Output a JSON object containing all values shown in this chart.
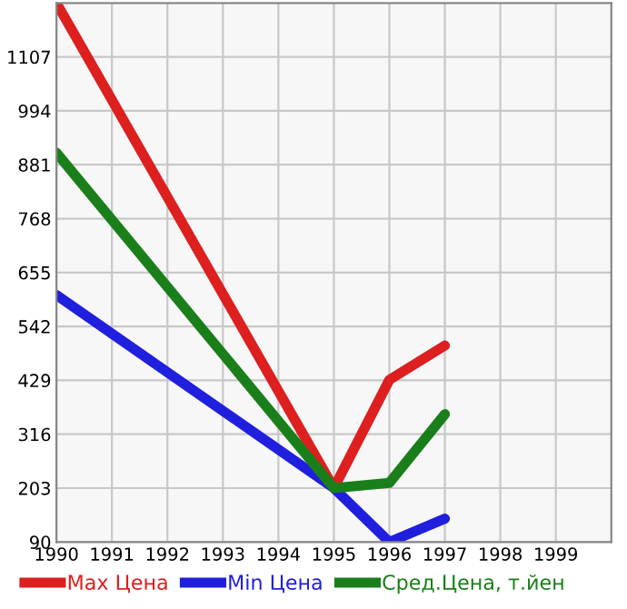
{
  "chart_data": {
    "type": "line",
    "x": [
      1990,
      1995,
      1996,
      1997
    ],
    "series": [
      {
        "name": "Max Цена",
        "color": "#dd1f1f",
        "values": [
          1220,
          203,
          430,
          502
        ]
      },
      {
        "name": "Min Цена",
        "color": "#1f1fdd",
        "values": [
          608,
          203,
          90,
          139
        ]
      },
      {
        "name": "Сред.Цена, т.йен",
        "color": "#1a7f1a",
        "values": [
          906,
          203,
          214,
          358
        ]
      }
    ],
    "xlim": [
      1990,
      2000
    ],
    "xticks": [
      1990,
      1991,
      1992,
      1993,
      1994,
      1995,
      1996,
      1997,
      1998,
      1999
    ],
    "ylim": [
      90,
      1220
    ],
    "yticks": [
      90,
      203,
      316,
      429,
      542,
      655,
      768,
      881,
      994,
      1107
    ],
    "grid": true,
    "legend": "bottom",
    "marker": "none",
    "line_style": "solid"
  }
}
